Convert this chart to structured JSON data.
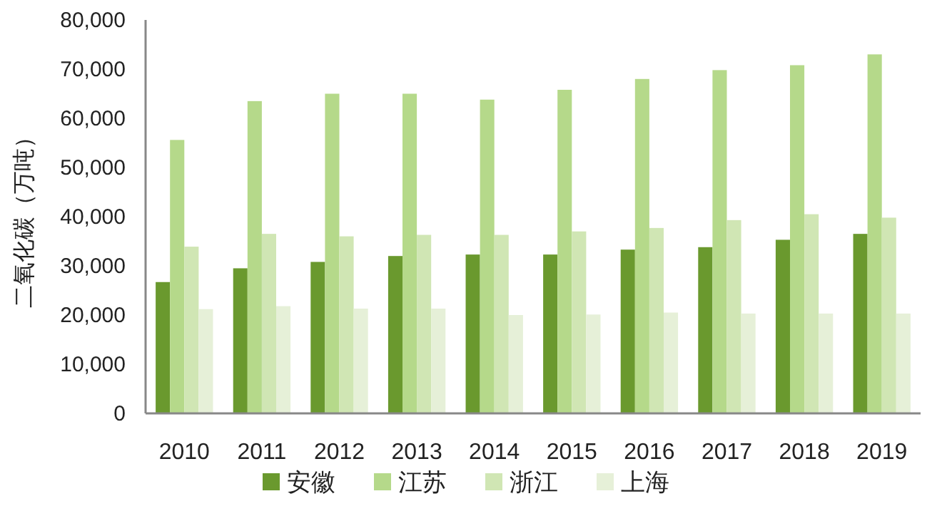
{
  "chart_data": {
    "type": "bar",
    "ylabel": "二氧化碳（万吨）",
    "categories": [
      "2010",
      "2011",
      "2012",
      "2013",
      "2014",
      "2015",
      "2016",
      "2017",
      "2018",
      "2019"
    ],
    "series": [
      {
        "name": "安徽",
        "color": "#6a992e",
        "values": [
          26700,
          29500,
          30800,
          32000,
          32300,
          32300,
          33300,
          33800,
          35300,
          36500
        ]
      },
      {
        "name": "江苏",
        "color": "#b5d98a",
        "values": [
          55600,
          63500,
          65000,
          65000,
          63800,
          65800,
          68000,
          69800,
          70800,
          73000
        ]
      },
      {
        "name": "浙江",
        "color": "#d0e6b4",
        "values": [
          33900,
          36500,
          36000,
          36300,
          36300,
          37000,
          37700,
          39300,
          40500,
          39800
        ]
      },
      {
        "name": "上海",
        "color": "#e6f0d8",
        "values": [
          21200,
          21800,
          21300,
          21300,
          20000,
          20100,
          20500,
          20300,
          20300,
          20300
        ]
      }
    ],
    "ylim": [
      0,
      80000
    ],
    "yticks": [
      {
        "value": 0,
        "label": "0"
      },
      {
        "value": 10000,
        "label": "10,000"
      },
      {
        "value": 20000,
        "label": "20,000"
      },
      {
        "value": 30000,
        "label": "30,000"
      },
      {
        "value": 40000,
        "label": "40,000"
      },
      {
        "value": 50000,
        "label": "50,000"
      },
      {
        "value": 60000,
        "label": "60,000"
      },
      {
        "value": 70000,
        "label": "70,000"
      },
      {
        "value": 80000,
        "label": "80,000"
      }
    ],
    "grid": false,
    "legend": "bottom"
  }
}
